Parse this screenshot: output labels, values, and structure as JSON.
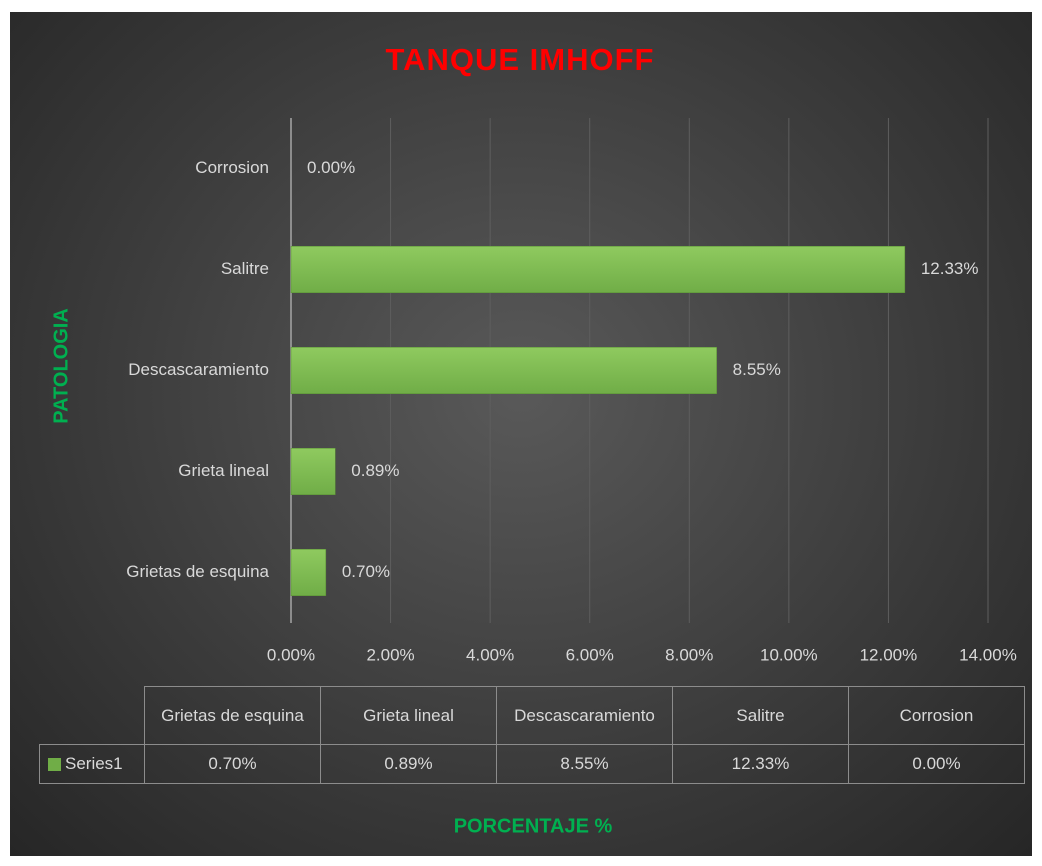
{
  "chart_data": {
    "type": "bar",
    "orientation": "horizontal",
    "title": "TANQUE IMHOFF",
    "xlabel": "PORCENTAJE %",
    "ylabel": "PATOLOGIA",
    "categories": [
      "Grietas de esquina",
      "Grieta lineal",
      "Descascaramiento",
      "Salitre",
      "Corrosion"
    ],
    "series": [
      {
        "name": "Series1",
        "color": "#70ad47",
        "values": [
          0.7,
          0.89,
          8.55,
          12.33,
          0.0
        ],
        "value_labels": [
          "0.70%",
          "0.89%",
          "8.55%",
          "12.33%",
          "0.00%"
        ]
      }
    ],
    "xlim": [
      0,
      14
    ],
    "xticks": [
      {
        "value": 0,
        "label": "0.00%"
      },
      {
        "value": 2,
        "label": "2.00%"
      },
      {
        "value": 4,
        "label": "4.00%"
      },
      {
        "value": 6,
        "label": "6.00%"
      },
      {
        "value": 8,
        "label": "8.00%"
      },
      {
        "value": 10,
        "label": "10.00%"
      },
      {
        "value": 12,
        "label": "12.00%"
      },
      {
        "value": 14,
        "label": "14.00%"
      }
    ],
    "grid": true,
    "data_table": true
  }
}
